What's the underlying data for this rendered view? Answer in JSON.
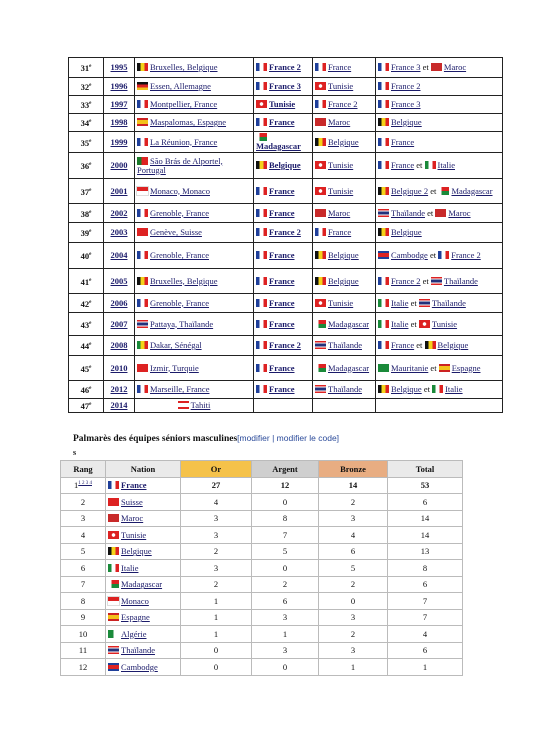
{
  "table1": {
    "rows": [
      {
        "rank": "31",
        "rank_sup": "e",
        "year": "1995",
        "host": "Bruxelles, Belgique",
        "gold": [
          "France 2"
        ],
        "silver": [
          "France"
        ],
        "bronze": [
          "France 3",
          " et ",
          "Maroc"
        ]
      },
      {
        "rank": "32",
        "rank_sup": "e",
        "year": "1996",
        "host": "Essen, Allemagne",
        "gold": [
          "France 3"
        ],
        "silver": [
          "Tunisie"
        ],
        "bronze": [
          "France 2"
        ]
      },
      {
        "rank": "33",
        "rank_sup": "e",
        "year": "1997",
        "host": "Montpellier, France",
        "gold": [
          "Tunisie"
        ],
        "silver": [
          "France 2"
        ],
        "bronze": [
          "France 3"
        ]
      },
      {
        "rank": "34",
        "rank_sup": "e",
        "year": "1998",
        "host": "Maspalomas, Espagne",
        "gold": [
          "France"
        ],
        "silver": [
          "Maroc"
        ],
        "bronze": [
          "Belgique"
        ]
      },
      {
        "rank": "35",
        "rank_sup": "e",
        "year": "1999",
        "host": "La Réunion, France",
        "gold": [
          "Madagascar"
        ],
        "silver": [
          "Belgique"
        ],
        "bronze": [
          "France"
        ]
      },
      {
        "rank": "36",
        "rank_sup": "e",
        "year": "2000",
        "host": "São Brás de Alportel, Portugal",
        "gold": [
          "Belgique"
        ],
        "silver": [
          "Tunisie"
        ],
        "bronze": [
          "France",
          " et ",
          "Italie"
        ]
      },
      {
        "rank": "37",
        "rank_sup": "e",
        "year": "2001",
        "host": "Monaco, Monaco",
        "gold": [
          "France"
        ],
        "silver": [
          "Tunisie"
        ],
        "bronze": [
          "Belgique 2",
          " et ",
          "Madagascar"
        ]
      },
      {
        "rank": "38",
        "rank_sup": "e",
        "year": "2002",
        "host": "Grenoble, France",
        "gold": [
          "France"
        ],
        "silver": [
          "Maroc"
        ],
        "bronze": [
          "Thaïlande",
          " et ",
          "Maroc"
        ]
      },
      {
        "rank": "39",
        "rank_sup": "e",
        "year": "2003",
        "host": "Genève, Suisse",
        "gold": [
          "France 2"
        ],
        "silver": [
          "France"
        ],
        "bronze": [
          "Belgique"
        ]
      },
      {
        "rank": "40",
        "rank_sup": "e",
        "year": "2004",
        "host": "Grenoble, France",
        "gold": [
          "France"
        ],
        "silver": [
          "Belgique"
        ],
        "bronze": [
          "Cambodge",
          " et ",
          "France 2"
        ]
      },
      {
        "rank": "41",
        "rank_sup": "e",
        "year": "2005",
        "host": "Bruxelles, Belgique",
        "gold": [
          "France"
        ],
        "silver": [
          "Belgique"
        ],
        "bronze": [
          "France 2",
          " et ",
          "Thaïlande"
        ]
      },
      {
        "rank": "42",
        "rank_sup": "e",
        "year": "2006",
        "host": "Grenoble, France",
        "gold": [
          "France"
        ],
        "silver": [
          "Tunisie"
        ],
        "bronze": [
          "Italie",
          " et ",
          "Thaïlande"
        ]
      },
      {
        "rank": "43",
        "rank_sup": "e",
        "year": "2007",
        "host": "Pattaya, Thaïlande",
        "gold": [
          "France"
        ],
        "silver": [
          "Madagascar"
        ],
        "bronze": [
          "Italie",
          " et ",
          "Tunisie"
        ]
      },
      {
        "rank": "44",
        "rank_sup": "e",
        "year": "2008",
        "host": "Dakar, Sénégal",
        "gold": [
          "France 2"
        ],
        "silver": [
          "Thaïlande"
        ],
        "bronze": [
          "France",
          " et ",
          "Belgique"
        ]
      },
      {
        "rank": "45",
        "rank_sup": "e",
        "year": "2010",
        "host": "Izmir, Turquie",
        "gold": [
          "France"
        ],
        "silver": [
          "Madagascar"
        ],
        "bronze": [
          "Mauritanie",
          " et ",
          "Espagne"
        ]
      },
      {
        "rank": "46",
        "rank_sup": "e",
        "year": "2012",
        "host": "Marseille, France",
        "gold": [
          "France"
        ],
        "silver": [
          "Thaïlande"
        ],
        "bronze": [
          "Belgique",
          " et ",
          "Italie"
        ]
      },
      {
        "rank": "47",
        "rank_sup": "e",
        "year": "2014",
        "host": "Tahiti",
        "gold": [],
        "silver": [],
        "bronze": []
      }
    ]
  },
  "standings": {
    "title": "Palmarès des équipes séniors masculines",
    "edit_links": "[modifier | modifier le code]",
    "stray": "s",
    "columns": [
      "Rang",
      "Nation",
      "Or",
      "Argent",
      "Bronze",
      "Total"
    ],
    "first_rank_notes": "1 2 3 4",
    "rows": [
      [
        "1",
        "France",
        "27",
        "12",
        "14",
        "53"
      ],
      [
        "2",
        "Suisse",
        "4",
        "0",
        "2",
        "6"
      ],
      [
        "3",
        "Maroc",
        "3",
        "8",
        "3",
        "14"
      ],
      [
        "4",
        "Tunisie",
        "3",
        "7",
        "4",
        "14"
      ],
      [
        "5",
        "Belgique",
        "2",
        "5",
        "6",
        "13"
      ],
      [
        "6",
        "Italie",
        "3",
        "0",
        "5",
        "8"
      ],
      [
        "7",
        "Madagascar",
        "2",
        "2",
        "2",
        "6"
      ],
      [
        "8",
        "Monaco",
        "1",
        "6",
        "0",
        "7"
      ],
      [
        "9",
        "Espagne",
        "1",
        "3",
        "3",
        "7"
      ],
      [
        "10",
        "Algérie",
        "1",
        "1",
        "2",
        "4"
      ],
      [
        "11",
        "Thaïlande",
        "0",
        "3",
        "3",
        "6"
      ],
      [
        "12",
        "Cambodge",
        "0",
        "0",
        "1",
        "1"
      ]
    ]
  }
}
